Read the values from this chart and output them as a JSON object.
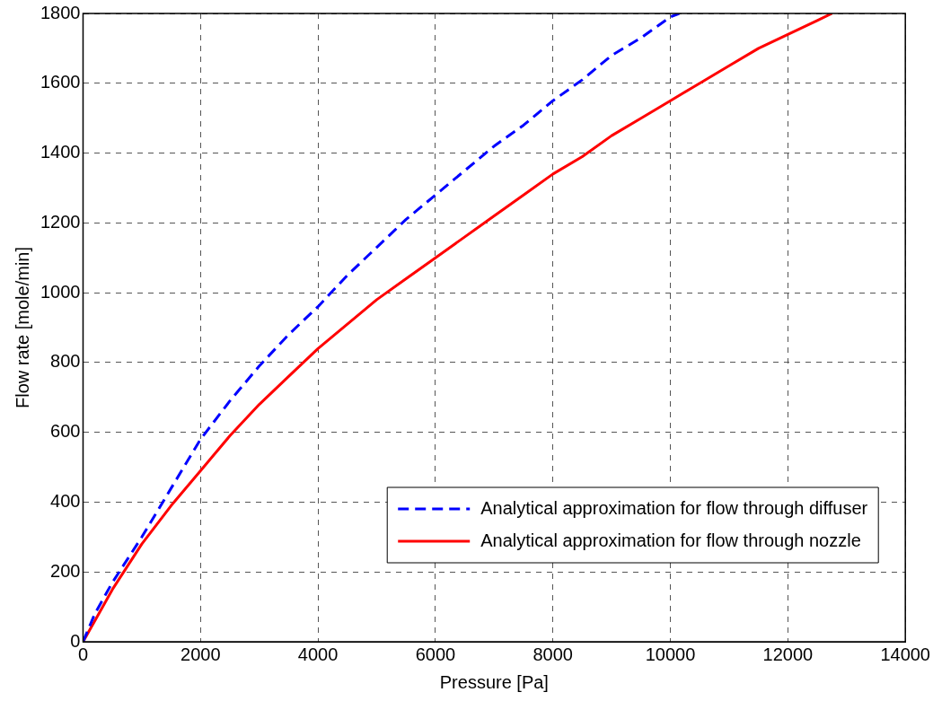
{
  "chart_data": {
    "type": "line",
    "xlabel": "Pressure [Pa]",
    "ylabel": "Flow rate [mole/min]",
    "xlim": [
      0,
      14000
    ],
    "ylim": [
      0,
      1800
    ],
    "xticks": [
      0,
      2000,
      4000,
      6000,
      8000,
      10000,
      12000,
      14000
    ],
    "yticks": [
      0,
      200,
      400,
      600,
      800,
      1000,
      1200,
      1400,
      1600,
      1800
    ],
    "grid": true,
    "legend": "bottom right",
    "marker": "none",
    "series": [
      {
        "name": "Analytical approximation for flow through diffuser",
        "color": "#0000ff",
        "line_style": "dashed",
        "x": [
          0,
          200,
          500,
          1000,
          1500,
          2000,
          2500,
          3000,
          3500,
          4000,
          4500,
          5000,
          5500,
          6000,
          6500,
          7000,
          7500,
          8000,
          8500,
          9000,
          9500,
          10000,
          10150
        ],
        "values": [
          0,
          80,
          170,
          300,
          440,
          580,
          690,
          790,
          880,
          960,
          1050,
          1130,
          1210,
          1280,
          1350,
          1420,
          1480,
          1550,
          1610,
          1680,
          1730,
          1790,
          1800
        ]
      },
      {
        "name": "Analytical approximation for flow through nozzle",
        "color": "#ff0000",
        "line_style": "solid",
        "x": [
          0,
          200,
          500,
          1000,
          1500,
          2000,
          2500,
          3000,
          3500,
          4000,
          4500,
          5000,
          5500,
          6000,
          6500,
          7000,
          7500,
          8000,
          8500,
          9000,
          9500,
          10000,
          10500,
          11000,
          11500,
          12000,
          12500,
          12750
        ],
        "values": [
          0,
          60,
          150,
          280,
          390,
          490,
          590,
          680,
          760,
          840,
          910,
          980,
          1040,
          1100,
          1160,
          1220,
          1280,
          1340,
          1390,
          1450,
          1500,
          1550,
          1600,
          1650,
          1700,
          1740,
          1780,
          1800
        ]
      }
    ]
  }
}
